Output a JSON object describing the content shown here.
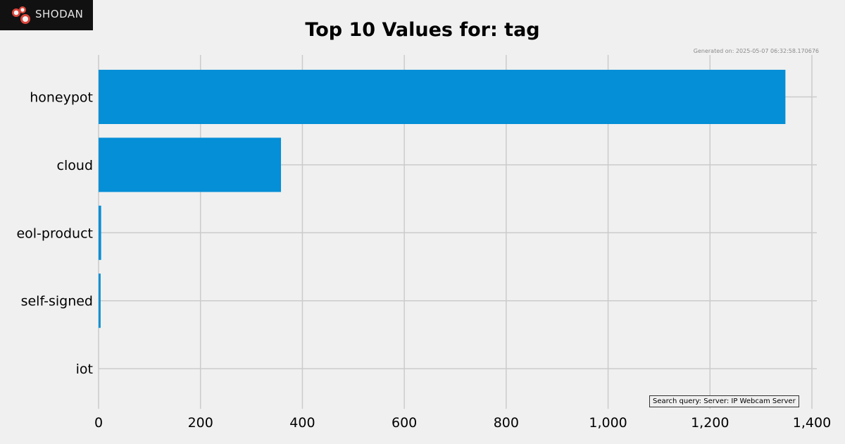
{
  "brand": {
    "name": "Shodan",
    "logo_text": "SHODAN",
    "colors": {
      "logo_bg": "#111111",
      "logo_mark": "#d9453a"
    }
  },
  "generated_text": "Generated on: 2025-05-07 06:32:58.170676",
  "query_text": "Search query: Server: IP Webcam Server",
  "chart_data": {
    "type": "bar",
    "orientation": "horizontal",
    "title": "Top 10 Values for: tag",
    "categories": [
      "honeypot",
      "cloud",
      "eol-product",
      "self-signed",
      "iot"
    ],
    "values": [
      1348,
      358,
      5,
      4,
      0
    ],
    "xlim": [
      0,
      1400
    ],
    "xticks": [
      0,
      200,
      400,
      600,
      800,
      1000,
      1200,
      1400
    ],
    "xtick_labels": [
      "0",
      "200",
      "400",
      "600",
      "800",
      "1,000",
      "1,200",
      "1,400"
    ],
    "xlabel": "",
    "ylabel": "",
    "grid": true,
    "bar_color": "#048fd6"
  }
}
